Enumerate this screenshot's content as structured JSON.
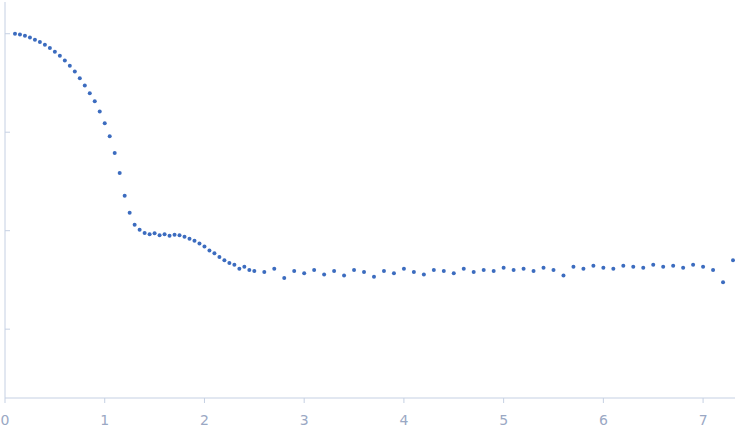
{
  "chart_data": {
    "type": "scatter",
    "log": "y",
    "color": "#3c6cbf",
    "marker": "circle",
    "grid": false,
    "tick_labels": "x",
    "xlim": [
      0,
      7.32
    ],
    "xticks": [
      0,
      1,
      2,
      3,
      4,
      5,
      6,
      7
    ],
    "ylim": [
      0.0002,
      2.1
    ],
    "yticks": [
      0.001,
      0.01,
      0.1,
      1
    ],
    "x": [
      0.1,
      0.15,
      0.2,
      0.25,
      0.3,
      0.35,
      0.4,
      0.45,
      0.5,
      0.55,
      0.6,
      0.65,
      0.7,
      0.75,
      0.8,
      0.85,
      0.9,
      0.95,
      1.0,
      1.05,
      1.1,
      1.15,
      1.2,
      1.25,
      1.3,
      1.35,
      1.4,
      1.45,
      1.5,
      1.55,
      1.6,
      1.65,
      1.7,
      1.75,
      1.8,
      1.85,
      1.9,
      1.95,
      2.0,
      2.05,
      2.1,
      2.15,
      2.2,
      2.25,
      2.3,
      2.35,
      2.4,
      2.45,
      2.5,
      2.6,
      2.7,
      2.8,
      2.9,
      3.0,
      3.1,
      3.2,
      3.3,
      3.4,
      3.5,
      3.6,
      3.7,
      3.8,
      3.9,
      4.0,
      4.1,
      4.2,
      4.3,
      4.4,
      4.5,
      4.6,
      4.7,
      4.8,
      4.9,
      5.0,
      5.1,
      5.2,
      5.3,
      5.4,
      5.5,
      5.6,
      5.7,
      5.8,
      5.9,
      6.0,
      6.1,
      6.2,
      6.3,
      6.4,
      6.5,
      6.6,
      6.7,
      6.8,
      6.9,
      7.0,
      7.1,
      7.2,
      7.3
    ],
    "values": [
      1.0,
      0.98,
      0.955,
      0.915,
      0.87,
      0.823,
      0.774,
      0.717,
      0.658,
      0.597,
      0.534,
      0.472,
      0.413,
      0.354,
      0.298,
      0.249,
      0.206,
      0.162,
      0.123,
      0.091,
      0.0614,
      0.0385,
      0.0226,
      0.0152,
      0.0115,
      0.0102,
      0.0095,
      0.0092,
      0.0094,
      0.009,
      0.0092,
      0.0089,
      0.0091,
      0.009,
      0.0087,
      0.0083,
      0.0079,
      0.0074,
      0.0069,
      0.0063,
      0.0059,
      0.0054,
      0.005,
      0.0047,
      0.0045,
      0.0041,
      0.0043,
      0.004,
      0.0039,
      0.0038,
      0.0041,
      0.0033,
      0.0039,
      0.0037,
      0.004,
      0.0036,
      0.0039,
      0.0035,
      0.004,
      0.0038,
      0.0034,
      0.0039,
      0.0037,
      0.0041,
      0.0038,
      0.0036,
      0.004,
      0.0039,
      0.0037,
      0.0041,
      0.0038,
      0.004,
      0.0039,
      0.0042,
      0.004,
      0.0041,
      0.0039,
      0.0042,
      0.004,
      0.0035,
      0.0043,
      0.0041,
      0.0044,
      0.0042,
      0.0041,
      0.0044,
      0.0043,
      0.0042,
      0.0045,
      0.0043,
      0.0044,
      0.0042,
      0.0045,
      0.0043,
      0.004,
      0.003,
      0.005
    ]
  }
}
